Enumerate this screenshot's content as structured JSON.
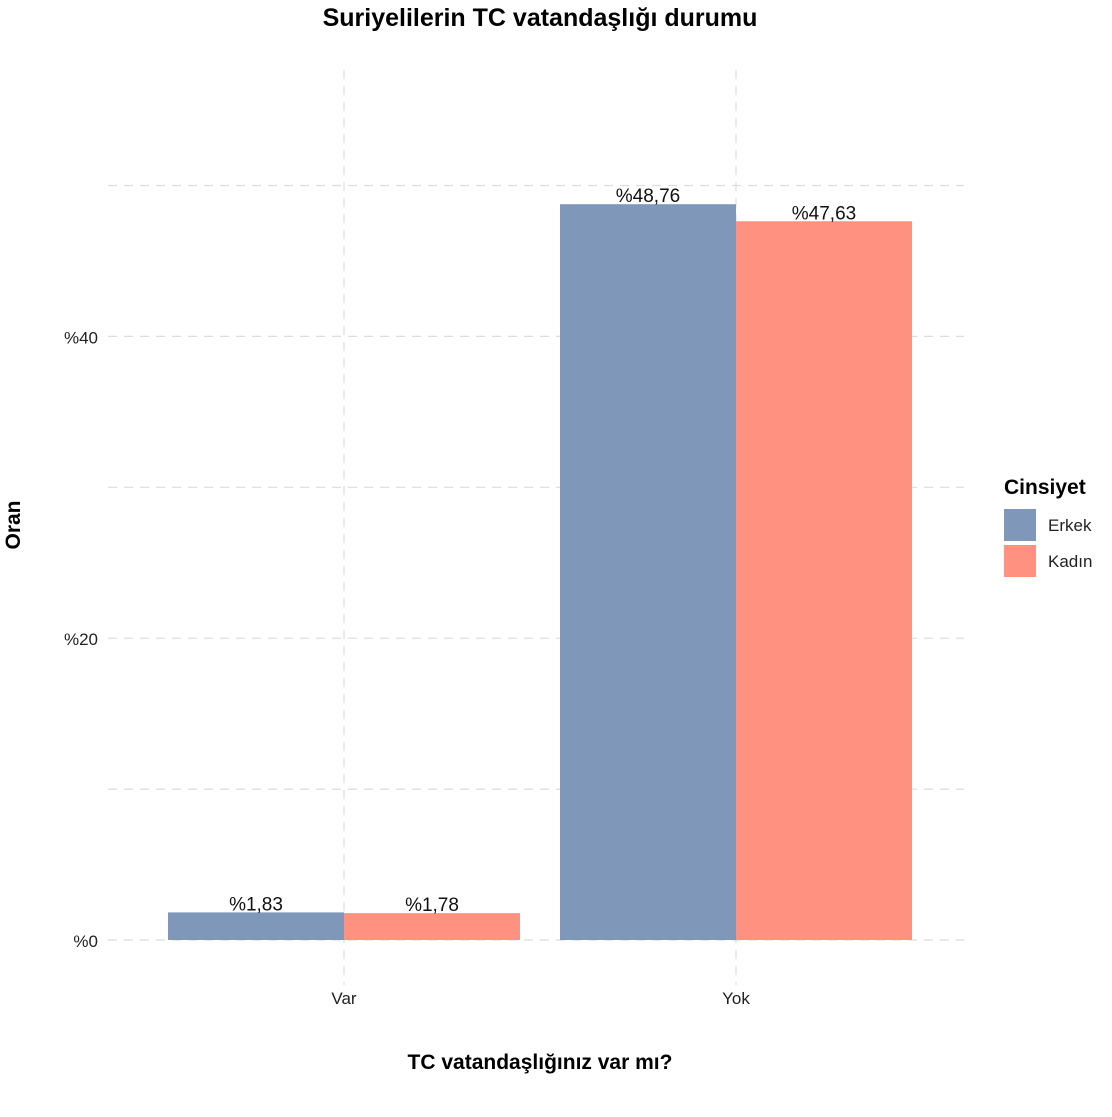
{
  "chart_data": {
    "type": "bar",
    "title": "Suriyelilerin TC vatandaşlığı durumu",
    "xlabel": "TC vatandaşlığınız var mı?",
    "ylabel": "Oran",
    "categories": [
      "Var",
      "Yok"
    ],
    "ylim": [
      0,
      55
    ],
    "y_ticks": [
      0,
      20,
      40
    ],
    "y_tick_labels": [
      "%0",
      "%20",
      "%40"
    ],
    "y_minor_gridlines": [
      10,
      30,
      50
    ],
    "grid": true,
    "legend": {
      "title": "Cinsiyet",
      "position": "right"
    },
    "series": [
      {
        "name": "Erkek",
        "color": "#7F97B9",
        "values": [
          1.83,
          48.76
        ],
        "labels": [
          "%1,83",
          "%48,76"
        ]
      },
      {
        "name": "Kadın",
        "color": "#FF9180",
        "values": [
          1.78,
          47.63
        ],
        "labels": [
          "%1,78",
          "%47,63"
        ]
      }
    ]
  }
}
